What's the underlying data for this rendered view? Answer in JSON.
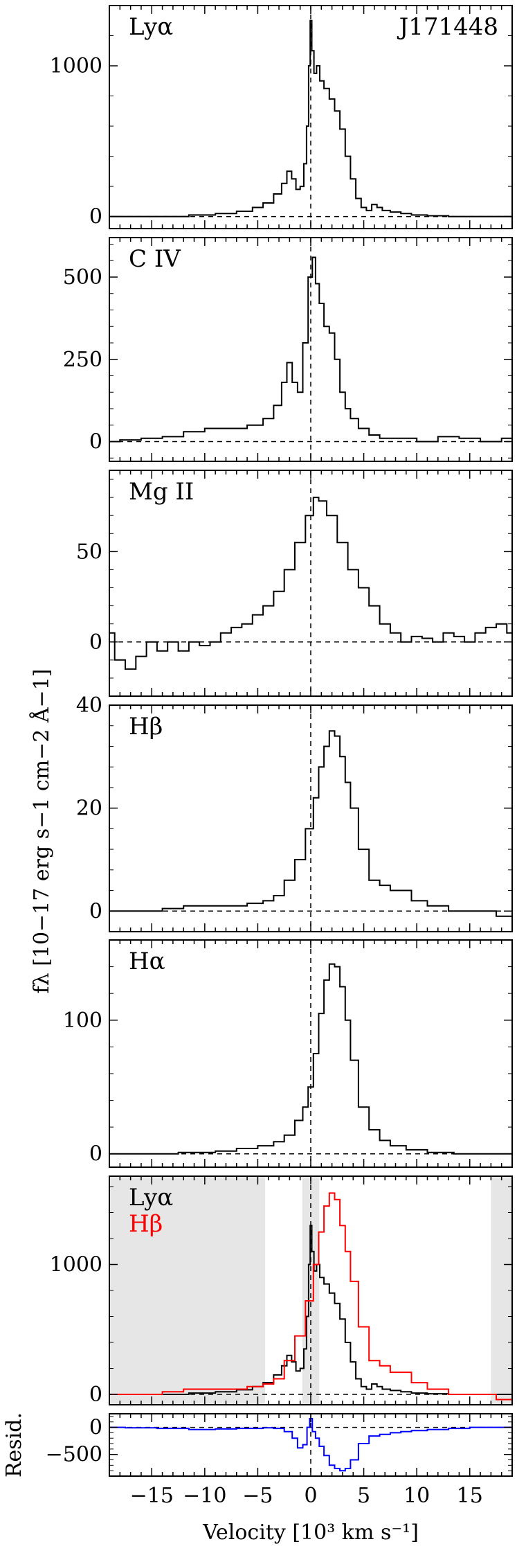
{
  "figure": {
    "ylabel": "fλ [10−17 erg s−1 cm−2 Å−1]",
    "xlabel": "Velocity [10³ km s⁻¹]",
    "object_label": "J171448"
  },
  "chart_data": [
    {
      "type": "line",
      "panel_label": "Lyα",
      "xlim": [
        -19,
        19
      ],
      "ylim": [
        -80,
        1400
      ],
      "yticks": [
        0,
        1000
      ],
      "series": [
        {
          "color": "#000000",
          "x": [
            -19,
            -16,
            -13,
            -10,
            -8,
            -6,
            -5,
            -4,
            -3,
            -2.5,
            -2,
            -1.6,
            -1.2,
            -0.8,
            -0.5,
            -0.3,
            -0.1,
            0,
            0.2,
            0.4,
            0.7,
            1,
            1.5,
            2,
            2.5,
            3,
            3.5,
            4,
            4.5,
            5,
            5.5,
            6,
            6.5,
            7,
            8,
            9,
            10,
            12,
            14,
            16,
            19
          ],
          "y": [
            0,
            0,
            0,
            10,
            20,
            35,
            60,
            90,
            150,
            220,
            300,
            250,
            180,
            200,
            350,
            600,
            1000,
            1300,
            1100,
            950,
            1000,
            900,
            850,
            780,
            700,
            580,
            400,
            250,
            120,
            60,
            40,
            80,
            60,
            40,
            30,
            20,
            10,
            5,
            0,
            0,
            0
          ]
        }
      ]
    },
    {
      "type": "line",
      "panel_label": "C IV",
      "xlim": [
        -19,
        19
      ],
      "ylim": [
        -60,
        620
      ],
      "yticks": [
        0,
        250,
        500
      ],
      "series": [
        {
          "color": "#000000",
          "x": [
            -19,
            -17,
            -15,
            -13,
            -11,
            -9,
            -7,
            -5,
            -4,
            -3,
            -2.5,
            -2,
            -1.5,
            -1,
            -0.5,
            0,
            0.3,
            0.6,
            1,
            1.5,
            2,
            2.5,
            3,
            3.5,
            4,
            5,
            6,
            7,
            9,
            11,
            13,
            15,
            17,
            19
          ],
          "y": [
            0,
            5,
            10,
            15,
            30,
            40,
            40,
            50,
            70,
            110,
            180,
            240,
            180,
            150,
            300,
            500,
            560,
            480,
            420,
            350,
            330,
            250,
            150,
            100,
            70,
            40,
            20,
            10,
            10,
            0,
            15,
            10,
            0,
            10
          ]
        }
      ]
    },
    {
      "type": "line",
      "panel_label": "Mg II",
      "xlim": [
        -19,
        19
      ],
      "ylim": [
        -30,
        95
      ],
      "yticks": [
        0,
        50
      ],
      "series": [
        {
          "color": "#000000",
          "x": [
            -19,
            -18,
            -17,
            -16,
            -15,
            -14,
            -13,
            -12,
            -11,
            -10,
            -9,
            -8,
            -7,
            -6,
            -5,
            -4,
            -3,
            -2,
            -1,
            0,
            0.5,
            1,
            2,
            3,
            4,
            5,
            6,
            7,
            8,
            9,
            10,
            11,
            12,
            13,
            14,
            15,
            16,
            17,
            18,
            19
          ],
          "y": [
            5,
            -10,
            -15,
            -8,
            0,
            -5,
            0,
            -5,
            0,
            -2,
            0,
            5,
            8,
            10,
            15,
            20,
            28,
            40,
            55,
            70,
            80,
            78,
            70,
            55,
            40,
            30,
            20,
            10,
            5,
            0,
            3,
            2,
            0,
            5,
            3,
            0,
            5,
            8,
            10,
            5
          ]
        }
      ]
    },
    {
      "type": "line",
      "panel_label": "Hβ",
      "xlim": [
        -19,
        19
      ],
      "ylim": [
        -4,
        40
      ],
      "yticks": [
        0,
        20,
        40
      ],
      "series": [
        {
          "color": "#000000",
          "x": [
            -19,
            -17,
            -15,
            -13,
            -11,
            -9,
            -7,
            -5,
            -4,
            -3,
            -2,
            -1,
            0,
            0.5,
            1,
            1.5,
            2,
            2.5,
            3,
            3.5,
            4,
            5,
            6,
            7,
            8,
            9,
            10,
            12,
            14,
            16,
            19
          ],
          "y": [
            0,
            0,
            0,
            0.5,
            1,
            1,
            1,
            1.5,
            2,
            3,
            6,
            10,
            16,
            22,
            28,
            32,
            35,
            34,
            30,
            25,
            20,
            12,
            6,
            5,
            4,
            4,
            2,
            1,
            0,
            0,
            -1
          ]
        }
      ]
    },
    {
      "type": "line",
      "panel_label": "Hα",
      "xlim": [
        -19,
        19
      ],
      "ylim": [
        -10,
        160
      ],
      "yticks": [
        0,
        100
      ],
      "series": [
        {
          "color": "#000000",
          "x": [
            -19,
            -15,
            -10,
            -8,
            -6,
            -4,
            -3,
            -2,
            -1,
            -0.5,
            0,
            0.5,
            1,
            1.5,
            2,
            2.5,
            3,
            3.5,
            4,
            5,
            6,
            7,
            8,
            10,
            12,
            15,
            19
          ],
          "y": [
            0,
            0,
            1,
            2,
            4,
            6,
            9,
            14,
            25,
            35,
            50,
            75,
            105,
            130,
            142,
            140,
            125,
            100,
            70,
            35,
            18,
            10,
            6,
            3,
            1,
            0,
            0
          ]
        }
      ]
    },
    {
      "type": "line",
      "legend": [
        "Lyα",
        "Hβ"
      ],
      "xlim": [
        -19,
        19
      ],
      "ylim": [
        -80,
        1680
      ],
      "yticks": [
        0,
        1000
      ],
      "shaded_ranges": [
        [
          -19,
          -4.3
        ],
        [
          -0.8,
          0.8
        ],
        [
          17,
          19
        ]
      ],
      "series": [
        {
          "name": "Lyα",
          "color": "#000000",
          "x": [
            -19,
            -16,
            -13,
            -10,
            -8,
            -6,
            -5,
            -4,
            -3,
            -2.5,
            -2,
            -1.6,
            -1.2,
            -0.8,
            -0.5,
            -0.3,
            -0.1,
            0,
            0.2,
            0.4,
            0.7,
            1,
            1.5,
            2,
            2.5,
            3,
            3.5,
            4,
            4.5,
            5,
            5.5,
            6,
            6.5,
            7,
            8,
            9,
            10,
            12,
            14,
            16,
            19
          ],
          "y": [
            0,
            0,
            0,
            10,
            20,
            35,
            60,
            90,
            150,
            220,
            300,
            250,
            180,
            200,
            350,
            600,
            1000,
            1300,
            1100,
            950,
            1000,
            900,
            850,
            780,
            700,
            580,
            400,
            250,
            120,
            60,
            40,
            80,
            60,
            40,
            30,
            20,
            10,
            5,
            0,
            0,
            0
          ]
        },
        {
          "name": "Hβ",
          "color": "#ff0000",
          "x": [
            -19,
            -17,
            -15,
            -13,
            -11,
            -9,
            -7,
            -5,
            -4,
            -3,
            -2,
            -1,
            0,
            0.5,
            1,
            1.5,
            2,
            2.5,
            3,
            3.5,
            4,
            5,
            6,
            7,
            8,
            9,
            10,
            12,
            14,
            16,
            19
          ],
          "y": [
            0,
            0,
            0,
            20,
            40,
            40,
            40,
            60,
            80,
            120,
            260,
            450,
            720,
            1000,
            1250,
            1450,
            1550,
            1500,
            1300,
            1100,
            870,
            520,
            260,
            220,
            170,
            170,
            90,
            40,
            0,
            0,
            -40
          ]
        }
      ]
    },
    {
      "type": "line",
      "ylabel": "Resid.",
      "xlim": [
        -19,
        19
      ],
      "ylim": [
        -900,
        250
      ],
      "yticks": [
        -500,
        0
      ],
      "xticks": [
        -15,
        -10,
        -5,
        0,
        5,
        10,
        15
      ],
      "series": [
        {
          "color": "#0000ff",
          "x": [
            -19,
            -16,
            -13,
            -10,
            -8,
            -6,
            -5,
            -4,
            -3,
            -2,
            -1.5,
            -1,
            -0.5,
            -0.2,
            0,
            0.3,
            0.6,
            1,
            1.5,
            2,
            2.5,
            3,
            3.5,
            4,
            5,
            6,
            7,
            8,
            9,
            10,
            12,
            14,
            16,
            19
          ],
          "y": [
            0,
            -10,
            -20,
            -40,
            -30,
            -20,
            -20,
            -10,
            -20,
            -80,
            -200,
            -380,
            -320,
            0,
            160,
            -80,
            -200,
            -350,
            -520,
            -700,
            -760,
            -800,
            -760,
            -600,
            -300,
            -160,
            -130,
            -100,
            -80,
            -60,
            -40,
            -20,
            0,
            0
          ]
        }
      ]
    }
  ]
}
